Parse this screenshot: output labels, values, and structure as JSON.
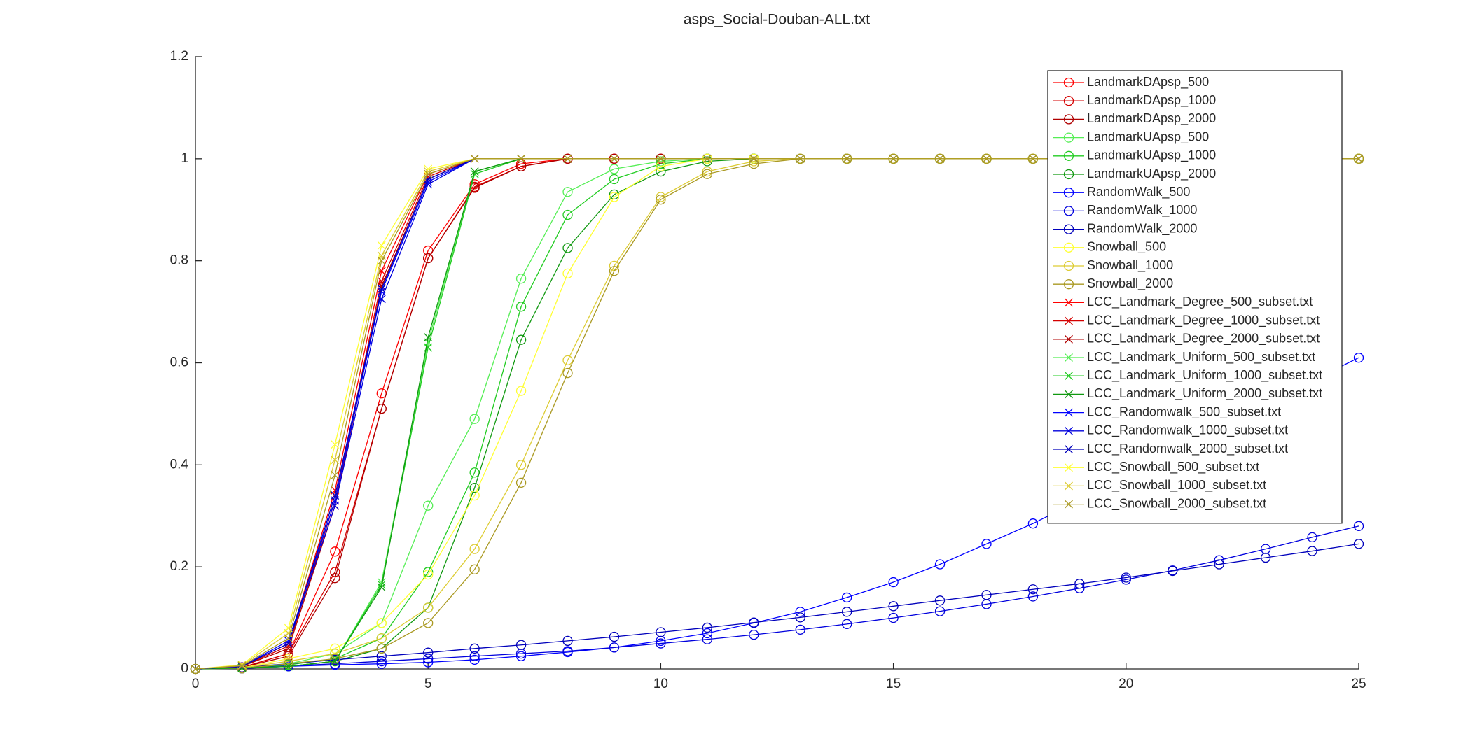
{
  "chart_data": {
    "type": "line",
    "title": "asps_Social-Douban-ALL.txt",
    "x": [
      0,
      1,
      2,
      3,
      4,
      5,
      6,
      7,
      8,
      9,
      10,
      11,
      12,
      13,
      14,
      15,
      16,
      17,
      18,
      19,
      20,
      21,
      22,
      23,
      24,
      25
    ],
    "xlim": [
      0,
      25
    ],
    "ylim": [
      0,
      1.2
    ],
    "xticks": [
      0,
      5,
      10,
      15,
      20,
      25
    ],
    "yticks": [
      0,
      0.2,
      0.4,
      0.6,
      0.8,
      1,
      1.2
    ],
    "legend": "upper-right",
    "series": [
      {
        "name": "LandmarkDApsp_500",
        "color": "#ff0000",
        "marker": "o",
        "values": [
          0,
          0.003,
          0.03,
          0.23,
          0.54,
          0.82,
          0.95,
          0.99,
          1,
          1,
          1,
          1,
          1,
          1,
          1,
          1,
          1,
          1,
          1,
          1,
          1,
          1,
          1,
          1,
          1,
          1
        ]
      },
      {
        "name": "LandmarkDApsp_1000",
        "color": "#d40000",
        "marker": "o",
        "values": [
          0,
          0.003,
          0.03,
          0.19,
          0.51,
          0.805,
          0.945,
          0.985,
          1,
          1,
          1,
          1,
          1,
          1,
          1,
          1,
          1,
          1,
          1,
          1,
          1,
          1,
          1,
          1,
          1,
          1
        ]
      },
      {
        "name": "LandmarkDApsp_2000",
        "color": "#b00000",
        "marker": "o",
        "values": [
          0,
          0.003,
          0.025,
          0.178,
          0.51,
          0.805,
          0.943,
          0.985,
          1,
          1,
          1,
          1,
          1,
          1,
          1,
          1,
          1,
          1,
          1,
          1,
          1,
          1,
          1,
          1,
          1,
          1
        ]
      },
      {
        "name": "LandmarkUApsp_500",
        "color": "#55ee55",
        "marker": "o",
        "values": [
          0,
          0.002,
          0.01,
          0.03,
          0.09,
          0.32,
          0.49,
          0.765,
          0.935,
          0.98,
          0.995,
          1,
          1,
          1,
          1,
          1,
          1,
          1,
          1,
          1,
          1,
          1,
          1,
          1,
          1,
          1
        ]
      },
      {
        "name": "LandmarkUApsp_1000",
        "color": "#22cc22",
        "marker": "o",
        "values": [
          0,
          0.002,
          0.008,
          0.02,
          0.06,
          0.19,
          0.385,
          0.71,
          0.89,
          0.96,
          0.99,
          1,
          1,
          1,
          1,
          1,
          1,
          1,
          1,
          1,
          1,
          1,
          1,
          1,
          1,
          1
        ]
      },
      {
        "name": "LandmarkUApsp_2000",
        "color": "#119911",
        "marker": "o",
        "values": [
          0,
          0.001,
          0.005,
          0.015,
          0.04,
          0.12,
          0.355,
          0.645,
          0.825,
          0.93,
          0.975,
          0.995,
          1,
          1,
          1,
          1,
          1,
          1,
          1,
          1,
          1,
          1,
          1,
          1,
          1,
          1
        ]
      },
      {
        "name": "RandomWalk_500",
        "color": "#0000ff",
        "marker": "o",
        "values": [
          0,
          0.001,
          0.005,
          0.008,
          0.01,
          0.013,
          0.018,
          0.025,
          0.033,
          0.042,
          0.055,
          0.07,
          0.09,
          0.112,
          0.14,
          0.17,
          0.205,
          0.245,
          0.285,
          0.33,
          0.375,
          0.42,
          0.47,
          0.52,
          0.565,
          0.61
        ]
      },
      {
        "name": "RandomWalk_1000",
        "color": "#0000dd",
        "marker": "o",
        "values": [
          0,
          0.002,
          0.006,
          0.01,
          0.015,
          0.02,
          0.025,
          0.03,
          0.035,
          0.042,
          0.05,
          0.058,
          0.067,
          0.077,
          0.088,
          0.1,
          0.113,
          0.127,
          0.142,
          0.158,
          0.175,
          0.193,
          0.213,
          0.235,
          0.258,
          0.28
        ]
      },
      {
        "name": "RandomWalk_2000",
        "color": "#0000bb",
        "marker": "o",
        "values": [
          0,
          0.003,
          0.01,
          0.018,
          0.025,
          0.032,
          0.04,
          0.047,
          0.055,
          0.063,
          0.072,
          0.081,
          0.091,
          0.101,
          0.112,
          0.123,
          0.134,
          0.145,
          0.156,
          0.167,
          0.179,
          0.192,
          0.205,
          0.218,
          0.231,
          0.245
        ]
      },
      {
        "name": "Snowball_500",
        "color": "#ffff33",
        "marker": "o",
        "values": [
          0,
          0.002,
          0.02,
          0.04,
          0.09,
          0.185,
          0.34,
          0.545,
          0.775,
          0.925,
          0.985,
          1,
          1,
          1,
          1,
          1,
          1,
          1,
          1,
          1,
          1,
          1,
          1,
          1,
          1,
          1
        ]
      },
      {
        "name": "Snowball_1000",
        "color": "#ddcc33",
        "marker": "o",
        "values": [
          0,
          0.002,
          0.015,
          0.03,
          0.06,
          0.12,
          0.235,
          0.4,
          0.605,
          0.79,
          0.925,
          0.975,
          0.995,
          1,
          1,
          1,
          1,
          1,
          1,
          1,
          1,
          1,
          1,
          1,
          1,
          1
        ]
      },
      {
        "name": "Snowball_2000",
        "color": "#aa9922",
        "marker": "o",
        "values": [
          0,
          0.001,
          0.01,
          0.02,
          0.04,
          0.09,
          0.195,
          0.365,
          0.58,
          0.78,
          0.92,
          0.97,
          0.99,
          1,
          1,
          1,
          1,
          1,
          1,
          1,
          1,
          1,
          1,
          1,
          1,
          1
        ]
      },
      {
        "name": "LCC_Landmark_Degree_500_subset.txt",
        "color": "#ff0000",
        "marker": "x",
        "values": [
          0,
          0.005,
          0.05,
          0.35,
          0.78,
          0.97,
          1,
          1,
          1,
          1,
          1,
          1,
          1,
          1,
          1,
          1,
          1,
          1,
          1,
          1,
          1,
          1,
          1,
          1,
          1,
          1
        ]
      },
      {
        "name": "LCC_Landmark_Degree_1000_subset.txt",
        "color": "#d40000",
        "marker": "x",
        "values": [
          0,
          0.005,
          0.045,
          0.33,
          0.76,
          0.965,
          1,
          1,
          1,
          1,
          1,
          1,
          1,
          1,
          1,
          1,
          1,
          1,
          1,
          1,
          1,
          1,
          1,
          1,
          1,
          1
        ]
      },
      {
        "name": "LCC_Landmark_Degree_2000_subset.txt",
        "color": "#b00000",
        "marker": "x",
        "values": [
          0,
          0.005,
          0.04,
          0.32,
          0.75,
          0.96,
          1,
          1,
          1,
          1,
          1,
          1,
          1,
          1,
          1,
          1,
          1,
          1,
          1,
          1,
          1,
          1,
          1,
          1,
          1,
          1
        ]
      },
      {
        "name": "LCC_Landmark_Uniform_500_subset.txt",
        "color": "#55ee55",
        "marker": "x",
        "values": [
          0,
          0.002,
          0.005,
          0.015,
          0.17,
          0.64,
          0.975,
          1,
          1,
          1,
          1,
          1,
          1,
          1,
          1,
          1,
          1,
          1,
          1,
          1,
          1,
          1,
          1,
          1,
          1,
          1
        ]
      },
      {
        "name": "LCC_Landmark_Uniform_1000_subset.txt",
        "color": "#22cc22",
        "marker": "x",
        "values": [
          0,
          0.002,
          0.005,
          0.015,
          0.165,
          0.63,
          0.97,
          1,
          1,
          1,
          1,
          1,
          1,
          1,
          1,
          1,
          1,
          1,
          1,
          1,
          1,
          1,
          1,
          1,
          1,
          1
        ]
      },
      {
        "name": "LCC_Landmark_Uniform_2000_subset.txt",
        "color": "#119911",
        "marker": "x",
        "values": [
          0,
          0.002,
          0.005,
          0.015,
          0.16,
          0.65,
          0.975,
          1,
          1,
          1,
          1,
          1,
          1,
          1,
          1,
          1,
          1,
          1,
          1,
          1,
          1,
          1,
          1,
          1,
          1,
          1
        ]
      },
      {
        "name": "LCC_Randomwalk_500_subset.txt",
        "color": "#0000ff",
        "marker": "x",
        "values": [
          0,
          0.005,
          0.055,
          0.33,
          0.74,
          0.955,
          1,
          1,
          1,
          1,
          1,
          1,
          1,
          1,
          1,
          1,
          1,
          1,
          1,
          1,
          1,
          1,
          1,
          1,
          1,
          1
        ]
      },
      {
        "name": "LCC_Randomwalk_1000_subset.txt",
        "color": "#0000dd",
        "marker": "x",
        "values": [
          0,
          0.005,
          0.05,
          0.32,
          0.725,
          0.95,
          1,
          1,
          1,
          1,
          1,
          1,
          1,
          1,
          1,
          1,
          1,
          1,
          1,
          1,
          1,
          1,
          1,
          1,
          1,
          1
        ]
      },
      {
        "name": "LCC_Randomwalk_2000_subset.txt",
        "color": "#0000bb",
        "marker": "x",
        "values": [
          0,
          0.005,
          0.05,
          0.34,
          0.745,
          0.96,
          1,
          1,
          1,
          1,
          1,
          1,
          1,
          1,
          1,
          1,
          1,
          1,
          1,
          1,
          1,
          1,
          1,
          1,
          1,
          1
        ]
      },
      {
        "name": "LCC_Snowball_500_subset.txt",
        "color": "#ffff33",
        "marker": "x",
        "values": [
          0,
          0.008,
          0.08,
          0.44,
          0.83,
          0.98,
          1,
          1,
          1,
          1,
          1,
          1,
          1,
          1,
          1,
          1,
          1,
          1,
          1,
          1,
          1,
          1,
          1,
          1,
          1,
          1
        ]
      },
      {
        "name": "LCC_Snowball_1000_subset.txt",
        "color": "#ddcc33",
        "marker": "x",
        "values": [
          0,
          0.007,
          0.07,
          0.41,
          0.81,
          0.975,
          1,
          1,
          1,
          1,
          1,
          1,
          1,
          1,
          1,
          1,
          1,
          1,
          1,
          1,
          1,
          1,
          1,
          1,
          1,
          1
        ]
      },
      {
        "name": "LCC_Snowball_2000_subset.txt",
        "color": "#aa9922",
        "marker": "x",
        "values": [
          0,
          0.006,
          0.06,
          0.38,
          0.8,
          0.97,
          1,
          1,
          1,
          1,
          1,
          1,
          1,
          1,
          1,
          1,
          1,
          1,
          1,
          1,
          1,
          1,
          1,
          1,
          1,
          1
        ]
      }
    ]
  }
}
